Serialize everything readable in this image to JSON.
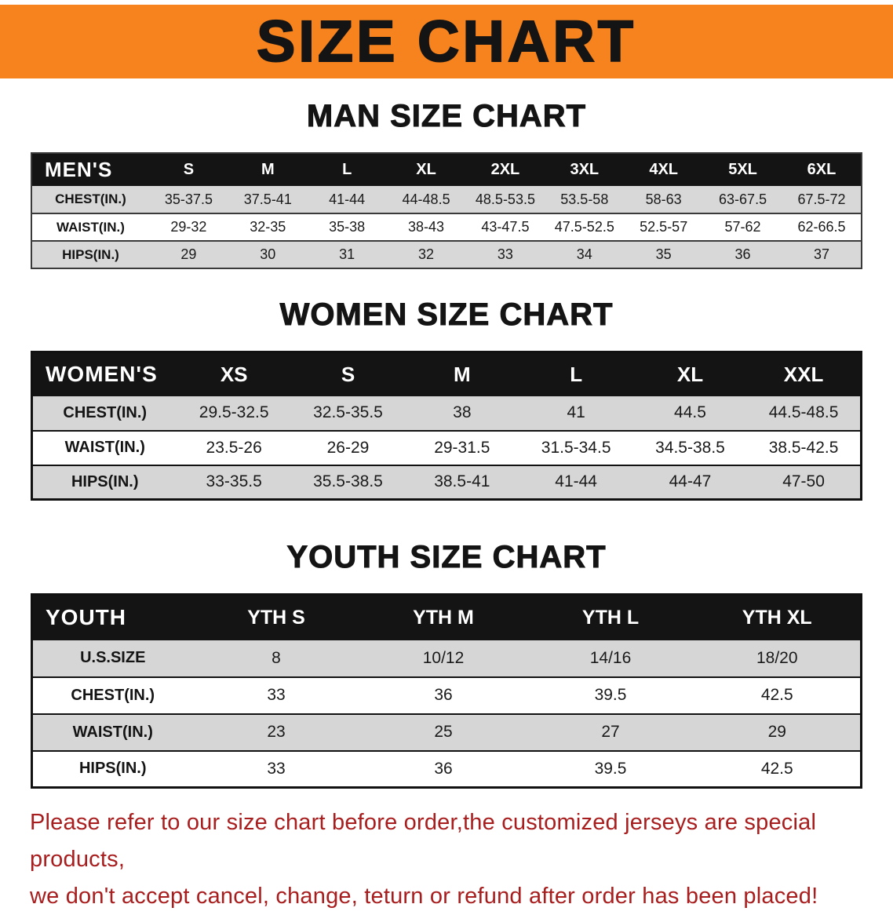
{
  "banner": {
    "title": "SIZE CHART",
    "bg_color": "#F6831D",
    "text_color": "#141414"
  },
  "sections": {
    "men": {
      "heading": "MAN SIZE CHART"
    },
    "women": {
      "heading": "WOMEN SIZE CHART"
    },
    "youth": {
      "heading": "YOUTH SIZE CHART"
    }
  },
  "tables": {
    "men": {
      "header": [
        "MEN'S",
        "S",
        "M",
        "L",
        "XL",
        "2XL",
        "3XL",
        "4XL",
        "5XL",
        "6XL"
      ],
      "rows": [
        [
          "CHEST(IN.)",
          "35-37.5",
          "37.5-41",
          "41-44",
          "44-48.5",
          "48.5-53.5",
          "53.5-58",
          "58-63",
          "63-67.5",
          "67.5-72"
        ],
        [
          "WAIST(IN.)",
          "29-32",
          "32-35",
          "35-38",
          "38-43",
          "43-47.5",
          "47.5-52.5",
          "52.5-57",
          "57-62",
          "62-66.5"
        ],
        [
          "HIPS(IN.)",
          "29",
          "30",
          "31",
          "32",
          "33",
          "34",
          "35",
          "36",
          "37"
        ]
      ]
    },
    "women": {
      "header": [
        "WOMEN'S",
        "XS",
        "S",
        "M",
        "L",
        "XL",
        "XXL"
      ],
      "rows": [
        [
          "CHEST(IN.)",
          "29.5-32.5",
          "32.5-35.5",
          "38",
          "41",
          "44.5",
          "44.5-48.5"
        ],
        [
          "WAIST(IN.)",
          "23.5-26",
          "26-29",
          "29-31.5",
          "31.5-34.5",
          "34.5-38.5",
          "38.5-42.5"
        ],
        [
          "HIPS(IN.)",
          "33-35.5",
          "35.5-38.5",
          "38.5-41",
          "41-44",
          "44-47",
          "47-50"
        ]
      ]
    },
    "youth": {
      "header": [
        "YOUTH",
        "YTH S",
        "YTH M",
        "YTH L",
        "YTH XL"
      ],
      "rows": [
        [
          "U.S.SIZE",
          "8",
          "10/12",
          "14/16",
          "18/20"
        ],
        [
          "CHEST(IN.)",
          "33",
          "36",
          "39.5",
          "42.5"
        ],
        [
          "WAIST(IN.)",
          "23",
          "25",
          "27",
          "29"
        ],
        [
          "HIPS(IN.)",
          "33",
          "36",
          "39.5",
          "42.5"
        ]
      ]
    }
  },
  "disclaimer": {
    "line1": "Please refer to our size chart before order,the customized jerseys are special products,",
    "line2": "we don't accept cancel, change, teturn or refund after order has been placed!",
    "color": "#A81D1D"
  }
}
